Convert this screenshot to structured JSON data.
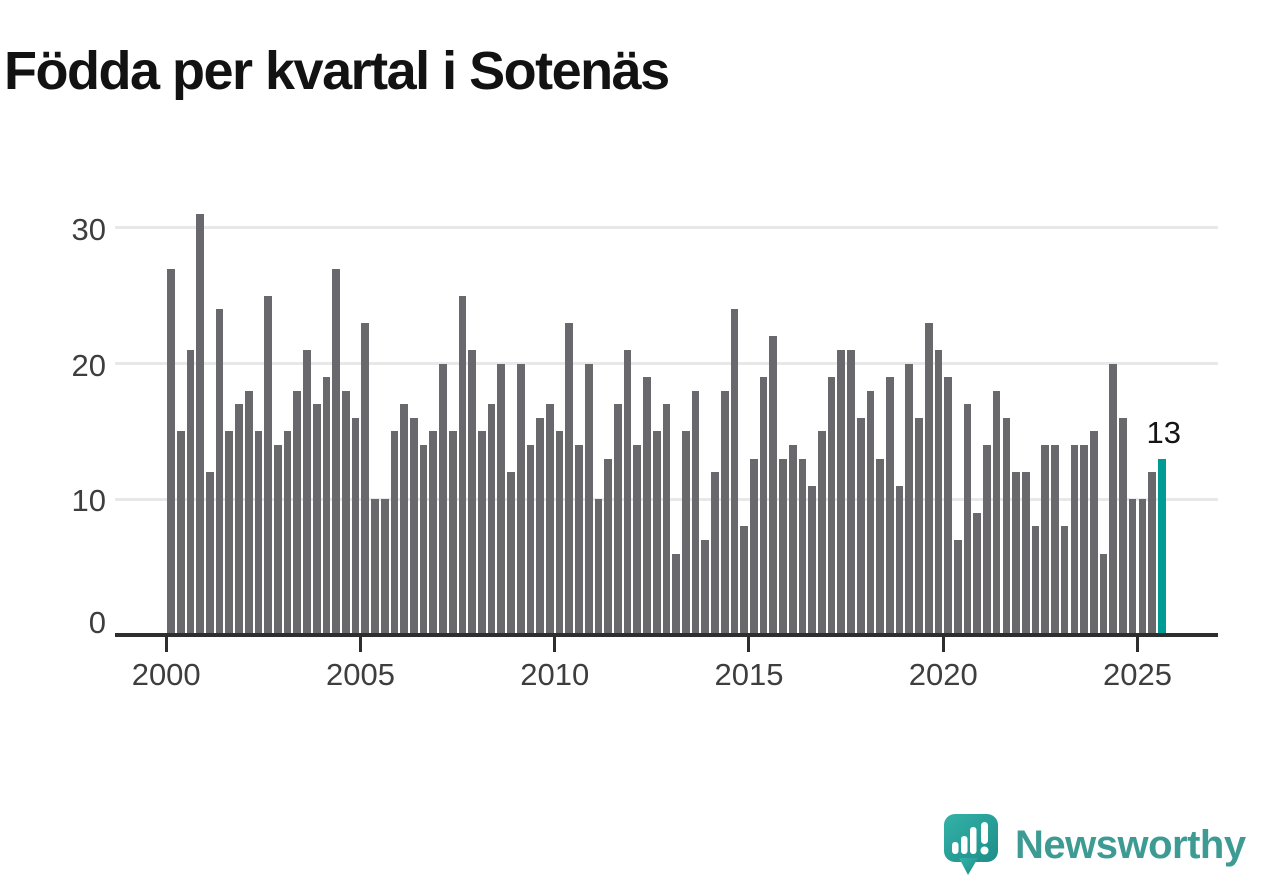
{
  "title": "Födda per kvartal i Sotenäs",
  "y_axis": {
    "tick_labels": [
      "0",
      "10",
      "20",
      "30"
    ]
  },
  "x_axis": {
    "tick_labels": [
      "2000",
      "2005",
      "2010",
      "2015",
      "2020",
      "2025"
    ]
  },
  "annotation_label": "13",
  "brand": {
    "name": "Newsworthy",
    "icon": "newsworthy-bubble-chart-icon",
    "text_color": "#3E9B94"
  },
  "chart_data": {
    "type": "bar",
    "title": "Födda per kvartal i Sotenäs",
    "x_start": "2000 Q1",
    "x_end": "2025 Q3",
    "x_unit": "quarter",
    "values": [
      27,
      15,
      21,
      31,
      12,
      24,
      15,
      17,
      18,
      15,
      25,
      14,
      15,
      18,
      21,
      17,
      19,
      27,
      18,
      16,
      23,
      10,
      10,
      15,
      17,
      16,
      14,
      15,
      20,
      15,
      25,
      21,
      15,
      17,
      20,
      12,
      20,
      14,
      16,
      17,
      15,
      23,
      14,
      20,
      10,
      13,
      17,
      21,
      14,
      19,
      15,
      17,
      6,
      15,
      18,
      7,
      12,
      18,
      24,
      8,
      13,
      19,
      22,
      13,
      14,
      13,
      11,
      15,
      19,
      21,
      21,
      16,
      18,
      13,
      19,
      11,
      20,
      16,
      23,
      21,
      19,
      7,
      17,
      9,
      14,
      18,
      16,
      12,
      12,
      8,
      14,
      14,
      8,
      14,
      14,
      15,
      6,
      20,
      16,
      10,
      10,
      12,
      13
    ],
    "years_per_row_note": "values run quarter by quarter from 2000 Q1 to 2025 Q3",
    "yticks": [
      0,
      10,
      20,
      30
    ],
    "ylim": [
      0,
      33
    ],
    "xticks": [
      2000,
      2005,
      2010,
      2015,
      2020,
      2025
    ],
    "grid": true,
    "legend": false,
    "bar_color": "#68686D",
    "highlight_color": "#009B94",
    "highlight_index": 102,
    "annotation": {
      "text": "13",
      "target": "last-bar"
    }
  }
}
